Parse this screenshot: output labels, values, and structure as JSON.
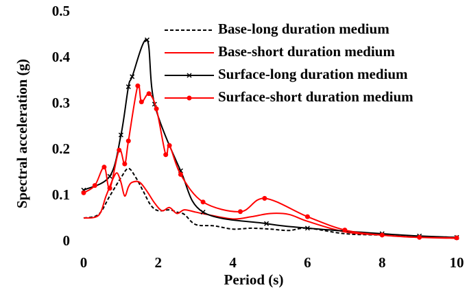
{
  "chart_data": {
    "type": "line",
    "xlabel": "Period (s)",
    "ylabel": "Spectral acceleration (g)",
    "xlim": [
      0,
      10
    ],
    "xticks": [
      0,
      2,
      4,
      6,
      8,
      10
    ],
    "ylim": [
      0,
      0.5
    ],
    "yticks": [
      {
        "value": 0,
        "label": "0"
      },
      0.1,
      0.2,
      0.3,
      0.4,
      0.5
    ],
    "legend": "top-right",
    "series": [
      {
        "name": "Base-long duration medium",
        "color": "#000000",
        "dash": "dashed",
        "marker": "none",
        "x": [
          0,
          0.4,
          0.7,
          1.0,
          1.2,
          1.4,
          1.6,
          1.8,
          2.0,
          2.3,
          2.5,
          2.7,
          3.0,
          3.5,
          4.0,
          4.5,
          5.0,
          5.5,
          6.0,
          7.0,
          8.0,
          9.0,
          10.0
        ],
        "values": [
          0.052,
          0.06,
          0.1,
          0.14,
          0.16,
          0.14,
          0.11,
          0.08,
          0.068,
          0.07,
          0.065,
          0.06,
          0.038,
          0.035,
          0.028,
          0.03,
          0.028,
          0.025,
          0.03,
          0.018,
          0.015,
          0.012,
          0.01
        ]
      },
      {
        "name": "Base-short duration medium",
        "color": "#ff0000",
        "dash": "solid",
        "marker": "none",
        "x": [
          0,
          0.4,
          0.6,
          0.8,
          0.9,
          1.0,
          1.1,
          1.2,
          1.3,
          1.5,
          1.7,
          1.9,
          2.1,
          2.3,
          2.5,
          2.7,
          3.0,
          3.3,
          4.0,
          4.5,
          5.0,
          5.5,
          6.0,
          7.0,
          8.0,
          9.0,
          10.0
        ],
        "values": [
          0.052,
          0.058,
          0.1,
          0.14,
          0.15,
          0.13,
          0.1,
          0.12,
          0.13,
          0.13,
          0.11,
          0.085,
          0.068,
          0.075,
          0.062,
          0.07,
          0.065,
          0.06,
          0.05,
          0.055,
          0.062,
          0.06,
          0.045,
          0.022,
          0.015,
          0.01,
          0.008
        ]
      },
      {
        "name": "Surface-long duration medium",
        "color": "#000000",
        "dash": "solid",
        "marker": "x",
        "x": [
          0,
          0.7,
          1.0,
          1.2,
          1.3,
          1.7,
          1.9,
          2.6,
          3.2,
          4.9,
          6.0,
          8.0,
          9.0,
          10.0
        ],
        "values": [
          0.113,
          0.143,
          0.233,
          0.338,
          0.36,
          0.44,
          0.3,
          0.155,
          0.065,
          0.04,
          0.03,
          0.018,
          0.013,
          0.01
        ]
      },
      {
        "name": "Surface-short duration medium",
        "color": "#ff0000",
        "dash": "solid",
        "marker": "circle",
        "x": [
          0,
          0.3,
          0.55,
          0.7,
          0.95,
          1.1,
          1.2,
          1.45,
          1.55,
          1.75,
          1.95,
          2.2,
          2.3,
          2.6,
          3.2,
          4.2,
          4.85,
          6.0,
          7.0,
          8.0,
          9.0,
          10.0
        ],
        "values": [
          0.107,
          0.123,
          0.163,
          0.117,
          0.2,
          0.17,
          0.22,
          0.34,
          0.305,
          0.323,
          0.29,
          0.19,
          0.21,
          0.147,
          0.087,
          0.066,
          0.095,
          0.055,
          0.026,
          0.015,
          0.01,
          0.009
        ]
      }
    ]
  }
}
